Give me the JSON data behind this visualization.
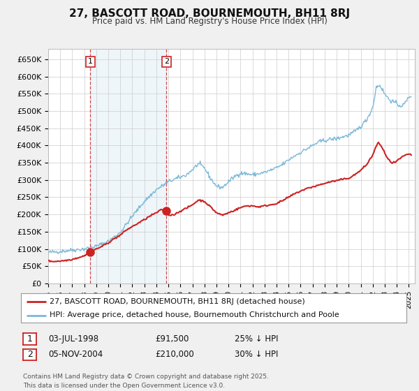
{
  "title": "27, BASCOTT ROAD, BOURNEMOUTH, BH11 8RJ",
  "subtitle": "Price paid vs. HM Land Registry's House Price Index (HPI)",
  "background_color": "#f0f0f0",
  "plot_bg_color": "#ffffff",
  "grid_color": "#cccccc",
  "hpi_color": "#7ab8d8",
  "price_color": "#cc2222",
  "ylim": [
    0,
    680000
  ],
  "yticks": [
    0,
    50000,
    100000,
    150000,
    200000,
    250000,
    300000,
    350000,
    400000,
    450000,
    500000,
    550000,
    600000,
    650000
  ],
  "ytick_labels": [
    "£0",
    "£50K",
    "£100K",
    "£150K",
    "£200K",
    "£250K",
    "£300K",
    "£350K",
    "£400K",
    "£450K",
    "£500K",
    "£550K",
    "£600K",
    "£650K"
  ],
  "xlim_start": 1995.0,
  "xlim_end": 2025.5,
  "purchase1_date": 1998.5,
  "purchase1_price": 91500,
  "purchase2_date": 2004.84,
  "purchase2_price": 210000,
  "legend_line1": "27, BASCOTT ROAD, BOURNEMOUTH, BH11 8RJ (detached house)",
  "legend_line2": "HPI: Average price, detached house, Bournemouth Christchurch and Poole",
  "footer": "Contains HM Land Registry data © Crown copyright and database right 2025.\nThis data is licensed under the Open Government Licence v3.0.",
  "hpi_anchors": [
    [
      1995.0,
      90000
    ],
    [
      1996.0,
      93000
    ],
    [
      1997.0,
      97000
    ],
    [
      1998.0,
      100000
    ],
    [
      1999.0,
      108000
    ],
    [
      2000.0,
      122000
    ],
    [
      2001.0,
      148000
    ],
    [
      2002.0,
      195000
    ],
    [
      2003.0,
      238000
    ],
    [
      2004.0,
      272000
    ],
    [
      2004.5,
      283000
    ],
    [
      2005.0,
      295000
    ],
    [
      2005.5,
      302000
    ],
    [
      2006.0,
      308000
    ],
    [
      2006.5,
      315000
    ],
    [
      2007.0,
      330000
    ],
    [
      2007.5,
      347000
    ],
    [
      2008.0,
      335000
    ],
    [
      2008.5,
      305000
    ],
    [
      2009.0,
      282000
    ],
    [
      2009.5,
      278000
    ],
    [
      2010.0,
      295000
    ],
    [
      2010.5,
      310000
    ],
    [
      2011.0,
      320000
    ],
    [
      2011.5,
      318000
    ],
    [
      2012.0,
      315000
    ],
    [
      2012.5,
      318000
    ],
    [
      2013.0,
      322000
    ],
    [
      2013.5,
      328000
    ],
    [
      2014.0,
      335000
    ],
    [
      2014.5,
      345000
    ],
    [
      2015.0,
      358000
    ],
    [
      2015.5,
      370000
    ],
    [
      2016.0,
      380000
    ],
    [
      2016.5,
      390000
    ],
    [
      2017.0,
      400000
    ],
    [
      2017.5,
      410000
    ],
    [
      2018.0,
      415000
    ],
    [
      2018.5,
      418000
    ],
    [
      2019.0,
      420000
    ],
    [
      2019.5,
      425000
    ],
    [
      2020.0,
      430000
    ],
    [
      2020.5,
      440000
    ],
    [
      2021.0,
      455000
    ],
    [
      2021.5,
      475000
    ],
    [
      2022.0,
      510000
    ],
    [
      2022.3,
      570000
    ],
    [
      2022.6,
      575000
    ],
    [
      2022.9,
      555000
    ],
    [
      2023.2,
      540000
    ],
    [
      2023.5,
      530000
    ],
    [
      2023.8,
      525000
    ],
    [
      2024.0,
      520000
    ],
    [
      2024.3,
      515000
    ],
    [
      2024.6,
      518000
    ],
    [
      2025.0,
      540000
    ],
    [
      2025.2,
      545000
    ]
  ],
  "price_anchors": [
    [
      1995.0,
      65000
    ],
    [
      1995.5,
      64000
    ],
    [
      1996.0,
      65000
    ],
    [
      1996.5,
      67000
    ],
    [
      1997.0,
      70000
    ],
    [
      1997.5,
      75000
    ],
    [
      1998.0,
      80000
    ],
    [
      1998.5,
      91500
    ],
    [
      1999.0,
      100000
    ],
    [
      1999.5,
      108000
    ],
    [
      2000.0,
      118000
    ],
    [
      2000.5,
      130000
    ],
    [
      2001.0,
      140000
    ],
    [
      2001.5,
      155000
    ],
    [
      2002.0,
      165000
    ],
    [
      2002.5,
      175000
    ],
    [
      2003.0,
      185000
    ],
    [
      2003.5,
      196000
    ],
    [
      2004.0,
      205000
    ],
    [
      2004.5,
      215000
    ],
    [
      2004.84,
      210000
    ],
    [
      2005.0,
      198000
    ],
    [
      2005.5,
      200000
    ],
    [
      2006.0,
      210000
    ],
    [
      2006.5,
      218000
    ],
    [
      2007.0,
      228000
    ],
    [
      2007.5,
      242000
    ],
    [
      2008.0,
      238000
    ],
    [
      2008.5,
      222000
    ],
    [
      2009.0,
      205000
    ],
    [
      2009.5,
      198000
    ],
    [
      2010.0,
      205000
    ],
    [
      2010.5,
      212000
    ],
    [
      2011.0,
      220000
    ],
    [
      2011.5,
      225000
    ],
    [
      2012.0,
      225000
    ],
    [
      2012.5,
      222000
    ],
    [
      2013.0,
      225000
    ],
    [
      2013.5,
      228000
    ],
    [
      2014.0,
      232000
    ],
    [
      2014.5,
      240000
    ],
    [
      2015.0,
      250000
    ],
    [
      2015.5,
      260000
    ],
    [
      2016.0,
      268000
    ],
    [
      2016.5,
      275000
    ],
    [
      2017.0,
      280000
    ],
    [
      2017.5,
      285000
    ],
    [
      2018.0,
      290000
    ],
    [
      2018.5,
      295000
    ],
    [
      2019.0,
      298000
    ],
    [
      2019.5,
      302000
    ],
    [
      2020.0,
      305000
    ],
    [
      2020.5,
      315000
    ],
    [
      2021.0,
      328000
    ],
    [
      2021.5,
      345000
    ],
    [
      2022.0,
      372000
    ],
    [
      2022.3,
      400000
    ],
    [
      2022.5,
      408000
    ],
    [
      2022.7,
      398000
    ],
    [
      2023.0,
      378000
    ],
    [
      2023.3,
      360000
    ],
    [
      2023.6,
      348000
    ],
    [
      2023.9,
      352000
    ],
    [
      2024.2,
      360000
    ],
    [
      2024.5,
      368000
    ],
    [
      2024.8,
      372000
    ],
    [
      2025.0,
      375000
    ],
    [
      2025.2,
      373000
    ]
  ]
}
